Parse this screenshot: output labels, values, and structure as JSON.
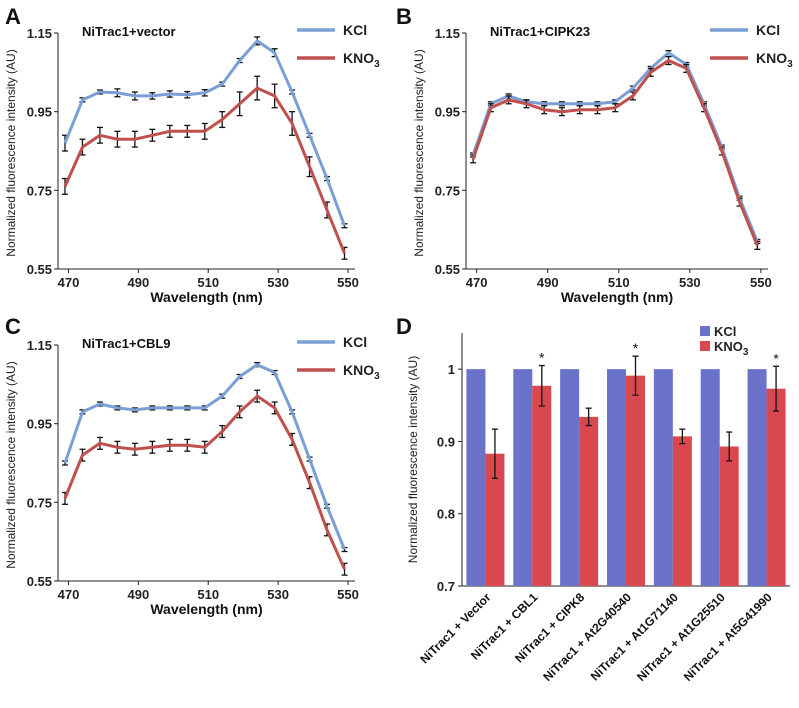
{
  "colors": {
    "kcl": "#7a9fd4",
    "kno3": "#c0504d",
    "bar_kcl": "#6b72c9",
    "bar_kno3": "#d9484f"
  },
  "chart_data": [
    {
      "type": "line",
      "panel": "A",
      "title": "NiTrac1+vector",
      "xlabel": "Wavelength (nm)",
      "ylabel": "Normalized fluorescence intensity (AU)",
      "xlim": [
        467,
        552
      ],
      "ylim": [
        0.55,
        1.15
      ],
      "xticks": [
        "470",
        "490",
        "510",
        "530",
        "550"
      ],
      "yticks": [
        "0.55",
        "0.75",
        "0.95",
        "1.15"
      ],
      "legend_position": "top-right",
      "x": [
        469,
        474,
        479,
        484,
        489,
        494,
        499,
        504,
        509,
        514,
        519,
        524,
        529,
        534,
        539,
        544,
        549
      ],
      "series": [
        {
          "name": "KCl",
          "values": [
            0.87,
            0.98,
            1.0,
            0.998,
            0.99,
            0.99,
            0.995,
            0.993,
            0.998,
            1.02,
            1.08,
            1.13,
            1.1,
            1.0,
            0.89,
            0.78,
            0.66
          ],
          "errors": [
            0.02,
            0.005,
            0.005,
            0.01,
            0.01,
            0.008,
            0.008,
            0.008,
            0.008,
            0.005,
            0.005,
            0.01,
            0.01,
            0.005,
            0.005,
            0.005,
            0.005
          ]
        },
        {
          "name": "KNO3",
          "values": [
            0.76,
            0.86,
            0.89,
            0.88,
            0.88,
            0.89,
            0.9,
            0.9,
            0.9,
            0.93,
            0.97,
            1.01,
            0.99,
            0.92,
            0.81,
            0.7,
            0.59
          ],
          "errors": [
            0.02,
            0.02,
            0.02,
            0.02,
            0.02,
            0.015,
            0.015,
            0.015,
            0.02,
            0.02,
            0.03,
            0.03,
            0.03,
            0.03,
            0.025,
            0.02,
            0.015
          ]
        }
      ]
    },
    {
      "type": "line",
      "panel": "B",
      "title": "NiTrac1+CIPK23",
      "xlabel": "Wavelength (nm)",
      "ylabel": "Normalized fluorescence intensity (AU)",
      "xlim": [
        467,
        552
      ],
      "ylim": [
        0.55,
        1.15
      ],
      "xticks": [
        "470",
        "490",
        "510",
        "530",
        "550"
      ],
      "yticks": [
        "0.55",
        "0.75",
        "0.95",
        "1.15"
      ],
      "legend_position": "top-right",
      "x": [
        469,
        474,
        479,
        484,
        489,
        494,
        499,
        504,
        509,
        514,
        519,
        524,
        529,
        534,
        539,
        544,
        549
      ],
      "series": [
        {
          "name": "KCl",
          "values": [
            0.84,
            0.97,
            0.99,
            0.975,
            0.97,
            0.97,
            0.97,
            0.97,
            0.975,
            1.01,
            1.06,
            1.1,
            1.07,
            0.97,
            0.86,
            0.73,
            0.62
          ],
          "errors": [
            0.005,
            0.005,
            0.005,
            0.005,
            0.005,
            0.005,
            0.005,
            0.005,
            0.005,
            0.005,
            0.005,
            0.005,
            0.005,
            0.005,
            0.005,
            0.005,
            0.005
          ]
        },
        {
          "name": "KNO3",
          "values": [
            0.83,
            0.96,
            0.98,
            0.97,
            0.955,
            0.95,
            0.955,
            0.955,
            0.96,
            0.99,
            1.05,
            1.08,
            1.06,
            0.96,
            0.85,
            0.72,
            0.61
          ],
          "errors": [
            0.01,
            0.01,
            0.01,
            0.01,
            0.01,
            0.01,
            0.01,
            0.01,
            0.01,
            0.01,
            0.01,
            0.01,
            0.01,
            0.01,
            0.01,
            0.01,
            0.01
          ]
        }
      ]
    },
    {
      "type": "line",
      "panel": "C",
      "title": "NiTrac1+CBL9",
      "xlabel": "Wavelength (nm)",
      "ylabel": "Normalized fluorescence intensity (AU)",
      "xlim": [
        467,
        552
      ],
      "ylim": [
        0.55,
        1.15
      ],
      "xticks": [
        "470",
        "490",
        "510",
        "530",
        "550"
      ],
      "yticks": [
        "0.55",
        "0.75",
        "0.95",
        "1.15"
      ],
      "legend_position": "top-right",
      "x": [
        469,
        474,
        479,
        484,
        489,
        494,
        499,
        504,
        509,
        514,
        519,
        524,
        529,
        534,
        539,
        544,
        549
      ],
      "series": [
        {
          "name": "KCl",
          "values": [
            0.85,
            0.98,
            1.0,
            0.99,
            0.985,
            0.99,
            0.99,
            0.99,
            0.99,
            1.02,
            1.07,
            1.1,
            1.08,
            0.98,
            0.86,
            0.74,
            0.63
          ],
          "errors": [
            0.005,
            0.005,
            0.005,
            0.005,
            0.005,
            0.005,
            0.005,
            0.005,
            0.005,
            0.005,
            0.005,
            0.005,
            0.005,
            0.005,
            0.005,
            0.005,
            0.005
          ]
        },
        {
          "name": "KNO3",
          "values": [
            0.76,
            0.87,
            0.9,
            0.89,
            0.885,
            0.89,
            0.895,
            0.895,
            0.89,
            0.93,
            0.98,
            1.02,
            0.99,
            0.91,
            0.8,
            0.68,
            0.58
          ],
          "errors": [
            0.015,
            0.015,
            0.015,
            0.015,
            0.015,
            0.015,
            0.015,
            0.015,
            0.015,
            0.015,
            0.015,
            0.015,
            0.015,
            0.015,
            0.015,
            0.015,
            0.015
          ]
        }
      ]
    },
    {
      "type": "bar",
      "panel": "D",
      "ylabel": "Normalized fluorescence intensity (AU)",
      "ylim": [
        0.7,
        1.05
      ],
      "yticks": [
        "0.7",
        "0.8",
        "0.9",
        "1"
      ],
      "legend_position": "top-right",
      "categories": [
        "NiTrac1 + Vector",
        "NiTrac1 + CBL1",
        "NiTrac1 + CIPK8",
        "NiTrac1 + At2G40540",
        "NiTrac1 + At1G71140",
        "NiTrac1 + At1G25510",
        "NiTrac1 + At5G41990"
      ],
      "annotations": [
        "",
        "*",
        "",
        "*",
        "",
        "",
        "*"
      ],
      "series": [
        {
          "name": "KCl",
          "values": [
            1,
            1,
            1,
            1,
            1,
            1,
            1
          ],
          "errors": [
            0,
            0,
            0,
            0,
            0,
            0,
            0
          ]
        },
        {
          "name": "KNO3",
          "values": [
            0.883,
            0.977,
            0.934,
            0.991,
            0.907,
            0.893,
            0.973
          ],
          "errors": [
            0.034,
            0.028,
            0.012,
            0.027,
            0.01,
            0.02,
            0.031
          ]
        }
      ]
    }
  ],
  "panel_letters": [
    "A",
    "B",
    "C",
    "D"
  ],
  "legend_labels": {
    "kcl": "KCl",
    "kno3_base": "KNO",
    "kno3_sub": "3"
  }
}
